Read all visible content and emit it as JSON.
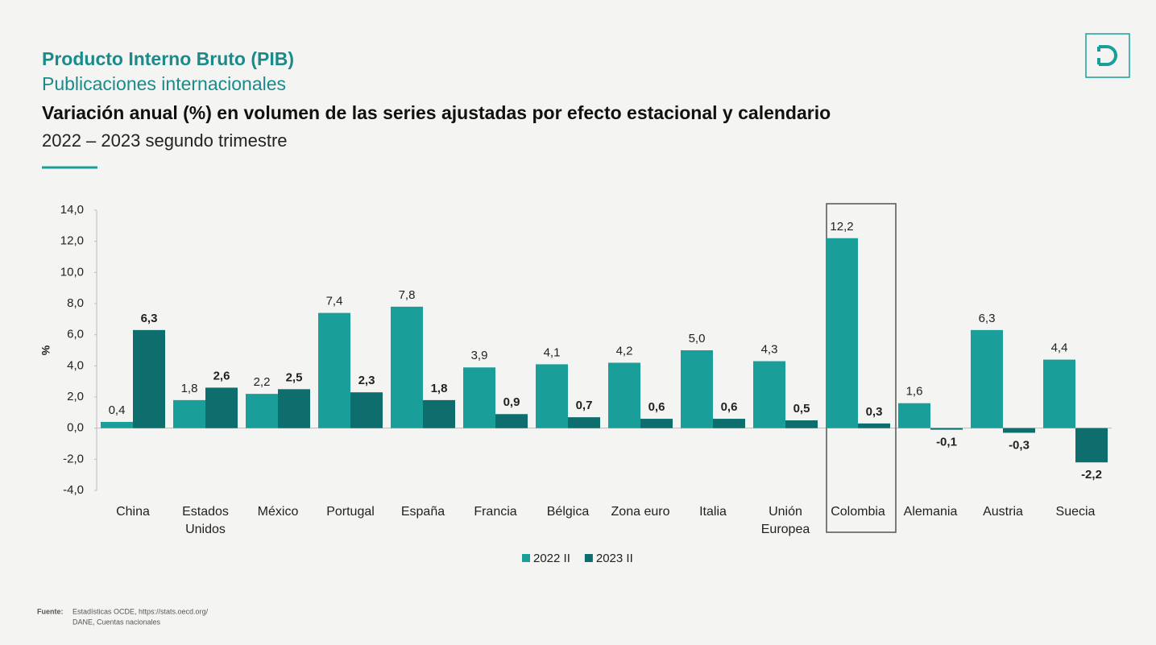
{
  "header": {
    "title": "Producto Interno Bruto (PIB)",
    "subtitle": "Publicaciones internacionales"
  },
  "chart_data": {
    "type": "bar",
    "title": "Variación anual (%) en volumen de las series ajustadas por efecto estacional y calendario",
    "subtitle": "2022 – 2023 segundo trimestre",
    "y_label": "%",
    "categories": [
      "China",
      "Estados Unidos",
      "México",
      "Portugal",
      "España",
      "Francia",
      "Bélgica",
      "Zona euro",
      "Italia",
      "Unión Europea",
      "Colombia",
      "Alemania",
      "Austria",
      "Suecia"
    ],
    "highlight": "Colombia",
    "series": [
      {
        "name": "2022 II",
        "color": "#1a9e9a",
        "values": [
          0.4,
          1.8,
          2.2,
          7.4,
          7.8,
          3.9,
          4.1,
          4.2,
          5.0,
          4.3,
          12.2,
          1.6,
          6.3,
          4.4
        ],
        "value_labels": [
          "0,4",
          "1,8",
          "2,2",
          "7,4",
          "7,8",
          "3,9",
          "4,1",
          "4,2",
          "5,0",
          "4,3",
          "12,2",
          "1,6",
          "6,3",
          "4,4"
        ]
      },
      {
        "name": "2023 II",
        "color": "#0e6d6d",
        "values": [
          6.3,
          2.6,
          2.5,
          2.3,
          1.8,
          0.9,
          0.7,
          0.6,
          0.6,
          0.5,
          0.3,
          -0.1,
          -0.3,
          -2.2
        ],
        "value_labels": [
          "6,3",
          "2,6",
          "2,5",
          "2,3",
          "1,8",
          "0,9",
          "0,7",
          "0,6",
          "0,6",
          "0,5",
          "0,3",
          "-0,1",
          "-0,3",
          "-2,2"
        ]
      }
    ],
    "ylim": [
      -4,
      14
    ],
    "yticks": [
      {
        "value": -4,
        "label": "-4,0"
      },
      {
        "value": -2,
        "label": "-2,0"
      },
      {
        "value": 0,
        "label": "0,0"
      },
      {
        "value": 2,
        "label": "2,0"
      },
      {
        "value": 4,
        "label": "4,0"
      },
      {
        "value": 6,
        "label": "6,0"
      },
      {
        "value": 8,
        "label": "8,0"
      },
      {
        "value": 10,
        "label": "10,0"
      },
      {
        "value": 12,
        "label": "12,0"
      },
      {
        "value": 14,
        "label": "14,0"
      }
    ],
    "legend": "bottom"
  },
  "source": {
    "label": "Fuente:",
    "lines": [
      "Estadísticas OCDE,  https://stats.oecd.org/",
      "DANE, Cuentas nacionales"
    ]
  }
}
